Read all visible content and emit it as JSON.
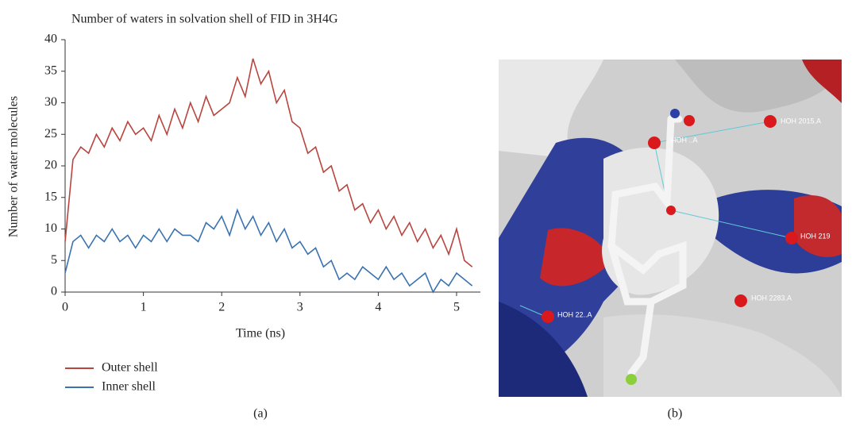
{
  "chart_data": {
    "type": "line",
    "title": "Number of waters in solvation shell of  FID in 3H4G",
    "x_label": "Time (ns)",
    "y_label": "Number of water molecules",
    "x": [
      0,
      0.1,
      0.2,
      0.3,
      0.4,
      0.5,
      0.6,
      0.7,
      0.8,
      0.9,
      1.0,
      1.1,
      1.2,
      1.3,
      1.4,
      1.5,
      1.6,
      1.7,
      1.8,
      1.9,
      2.0,
      2.1,
      2.2,
      2.3,
      2.4,
      2.5,
      2.6,
      2.7,
      2.8,
      2.9,
      3.0,
      3.1,
      3.2,
      3.3,
      3.4,
      3.5,
      3.6,
      3.7,
      3.8,
      3.9,
      4.0,
      4.1,
      4.2,
      4.3,
      4.4,
      4.5,
      4.6,
      4.7,
      4.8,
      4.9,
      5.0,
      5.1,
      5.2
    ],
    "series": [
      {
        "name": "Outer shell",
        "color": "#b8453f",
        "values": [
          8,
          21,
          23,
          22,
          25,
          23,
          26,
          24,
          27,
          25,
          26,
          24,
          28,
          25,
          29,
          26,
          30,
          27,
          31,
          28,
          29,
          30,
          34,
          31,
          37,
          33,
          35,
          30,
          32,
          27,
          26,
          22,
          23,
          19,
          20,
          16,
          17,
          13,
          14,
          11,
          13,
          10,
          12,
          9,
          11,
          8,
          10,
          7,
          9,
          6,
          10,
          5,
          4
        ]
      },
      {
        "name": "Inner shell",
        "color": "#3a72b0",
        "values": [
          3,
          8,
          9,
          7,
          9,
          8,
          10,
          8,
          9,
          7,
          9,
          8,
          10,
          8,
          10,
          9,
          9,
          8,
          11,
          10,
          12,
          9,
          13,
          10,
          12,
          9,
          11,
          8,
          10,
          7,
          8,
          6,
          7,
          4,
          5,
          2,
          3,
          2,
          4,
          3,
          2,
          4,
          2,
          3,
          1,
          2,
          3,
          0,
          2,
          1,
          3,
          2,
          1
        ]
      }
    ],
    "xlim": [
      0,
      5.3
    ],
    "xticks": [
      0,
      1,
      2,
      3,
      4,
      5
    ],
    "ylim": [
      0,
      40
    ],
    "yticks": [
      0,
      5,
      10,
      15,
      20,
      25,
      30,
      35,
      40
    ],
    "grid": false,
    "legend": "bottom-left"
  },
  "captions": [
    "(a)",
    "(b)"
  ],
  "image": {
    "labels": [
      "HOH 2015.A",
      "HOH 219",
      "HOH 2283.A",
      "HOH 22..A",
      "HOH ..A"
    ]
  }
}
